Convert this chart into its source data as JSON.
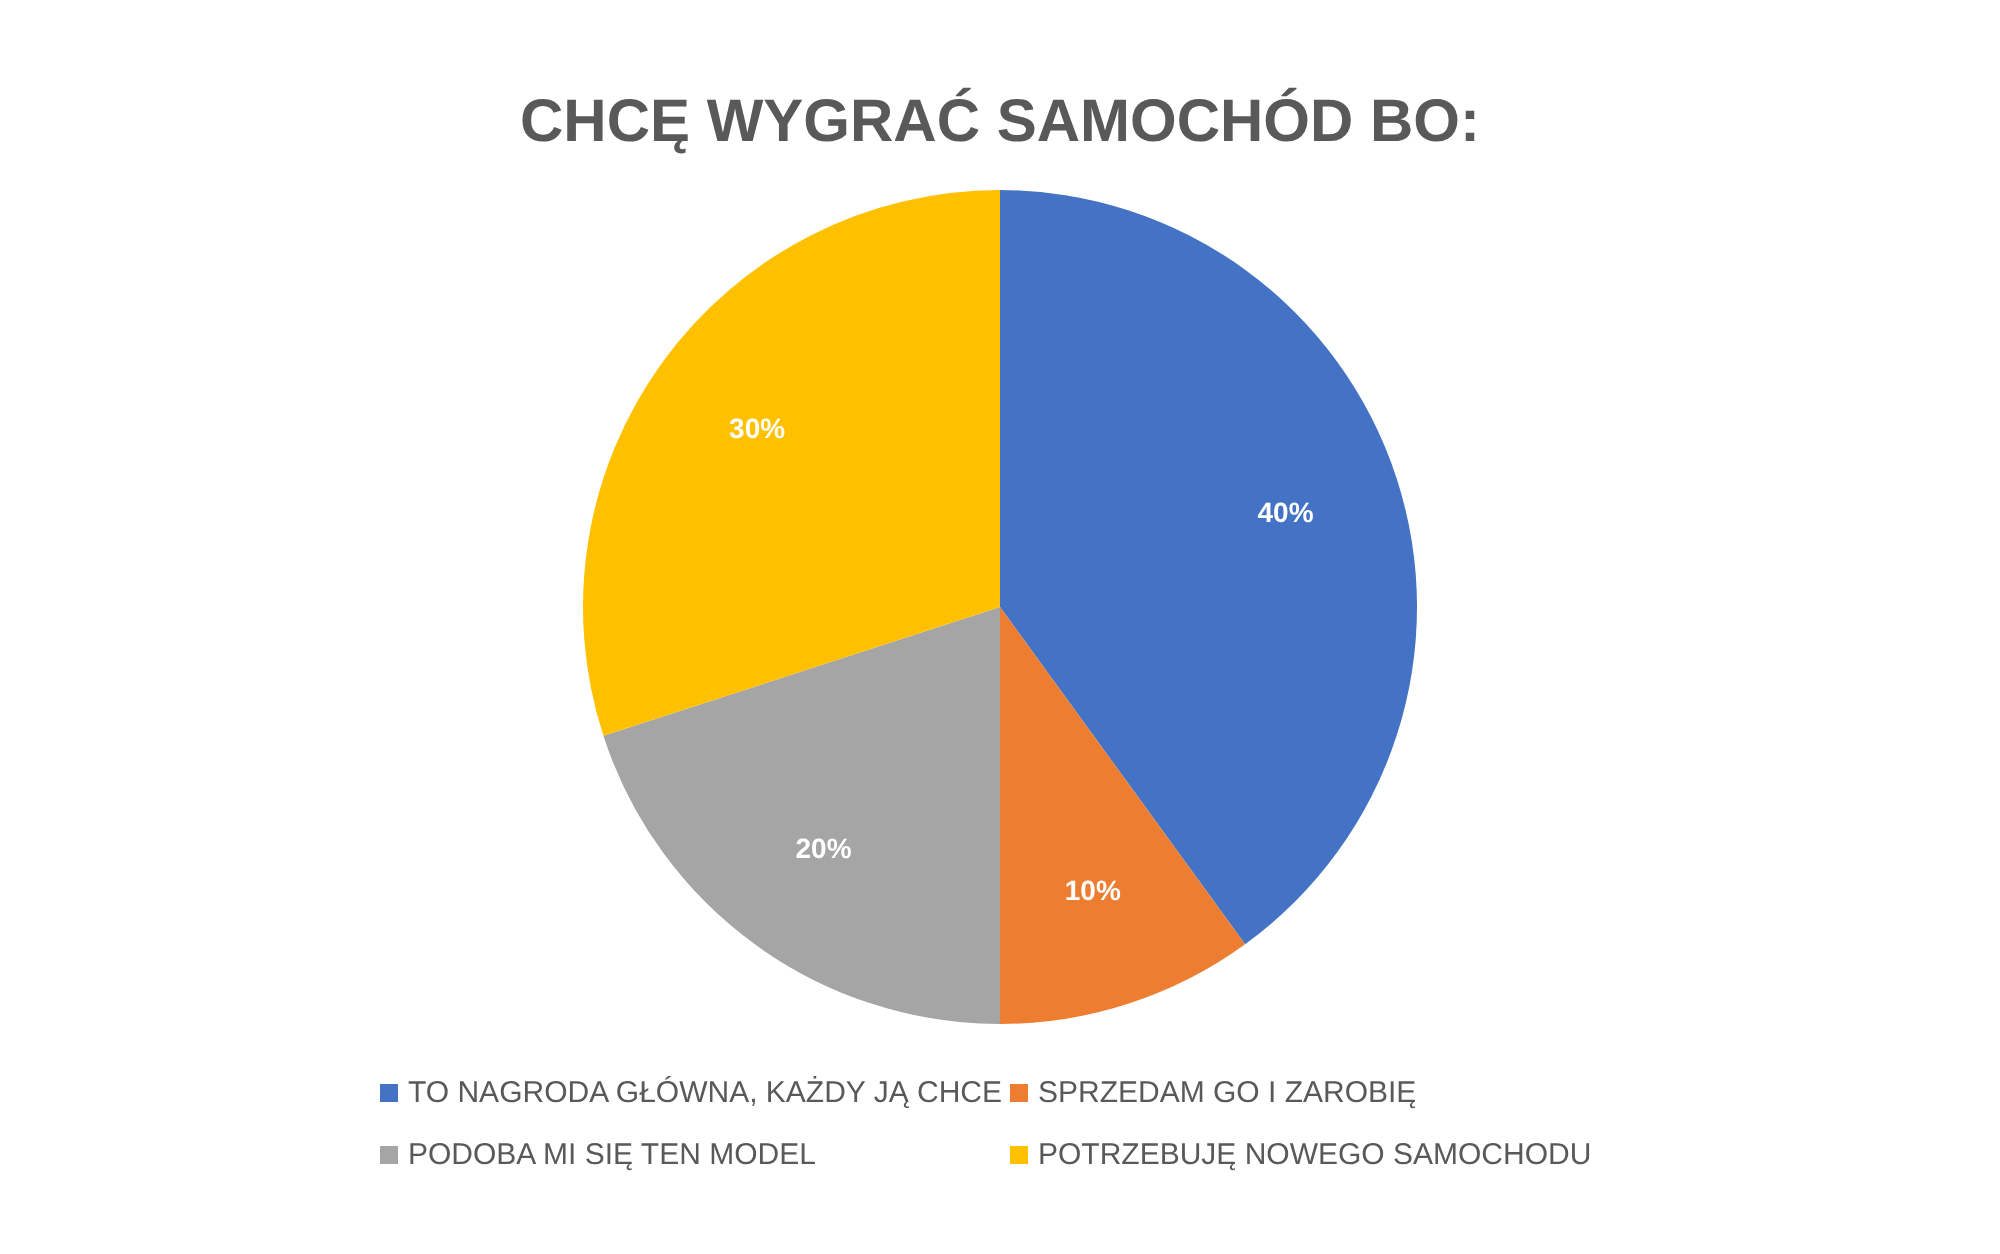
{
  "chart_data": {
    "type": "pie",
    "title": "CHCĘ WYGRAĆ SAMOCHÓD BO:",
    "categories": [
      "TO NAGRODA GŁÓWNA, KAŻDY JĄ CHCE",
      "SPRZEDAM GO I ZAROBIĘ",
      "PODOBA MI SIĘ TEN MODEL",
      "POTRZEBUJĘ NOWEGO SAMOCHODU"
    ],
    "values": [
      40,
      10,
      20,
      30
    ],
    "colors": [
      "#4472c4",
      "#ed7d31",
      "#a5a5a5",
      "#ffc000"
    ],
    "value_labels": [
      "40%",
      "10%",
      "20%",
      "30%"
    ],
    "legend": "bottom"
  }
}
